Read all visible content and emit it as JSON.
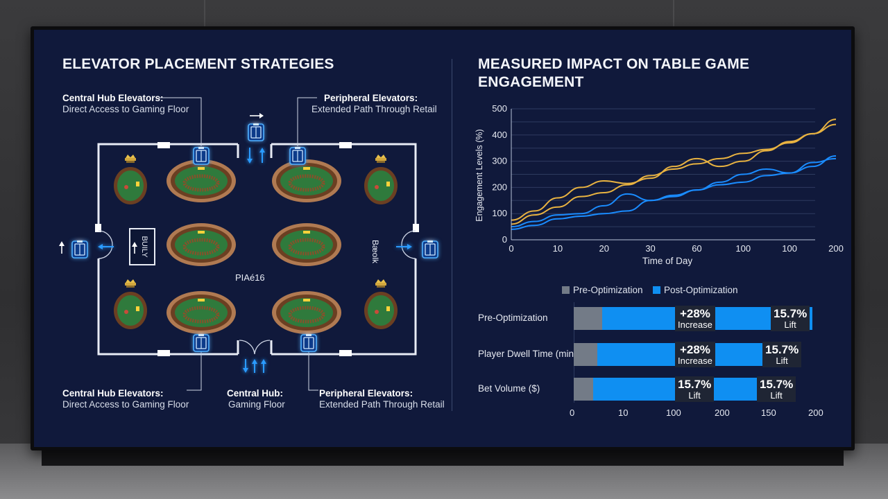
{
  "left_panel": {
    "title": "ELEVATOR PLACEMENT STRATEGIES",
    "callouts": {
      "top_left": {
        "title": "Central Hub Elevators:",
        "subtitle": "Direct Access to Gaming Floor"
      },
      "top_right": {
        "title": "Peripheral Elevators:",
        "subtitle": "Extended Path Through Retail"
      },
      "bottom_left": {
        "title": "Central Hub Elevators:",
        "subtitle": "Direct Access to Gaming Floor"
      },
      "bottom_center": {
        "title": "Central Hub:",
        "subtitle": "Gaming Floor"
      },
      "bottom_right": {
        "title": "Peripheral Elevators:",
        "subtitle": "Extended Path Through Retail"
      }
    },
    "floor_labels": {
      "left_sign": "BUILY",
      "center": "PIAé16",
      "right_sign": "Bæolk"
    },
    "icons": [
      "elevator-icon",
      "arrow-up-icon",
      "arrow-down-icon",
      "arrow-right-icon",
      "arrow-left-icon",
      "blackjack-table-icon",
      "round-table-icon"
    ],
    "accent_color": "#1a8cff"
  },
  "right_panel": {
    "title_line1": "MEASURED IMPACT ON TABLE GAME",
    "title_line2": "ENGAGEMENT"
  },
  "chart_data": [
    {
      "type": "line",
      "title": "",
      "xlabel": "Time of Day",
      "ylabel": "Engagement Levels (%)",
      "x_tick_labels": [
        "0",
        "10",
        "20",
        "30",
        "60",
        "100",
        "100",
        "200"
      ],
      "y_ticks": [
        0,
        50,
        100,
        150,
        200,
        250,
        300,
        350,
        400,
        450,
        500
      ],
      "y_tick_labels": [
        "0",
        "",
        "100",
        "",
        "200",
        "",
        "300",
        "",
        "400",
        "",
        "500"
      ],
      "ylim": [
        0,
        500
      ],
      "grid": true,
      "series": [
        {
          "color": "#e9b341",
          "values": [
            60,
            95,
            125,
            165,
            180,
            210,
            245,
            270,
            290,
            310,
            330,
            345,
            370,
            405,
            440
          ]
        },
        {
          "color": "#e9b341",
          "values": [
            75,
            110,
            160,
            200,
            225,
            215,
            235,
            280,
            310,
            280,
            300,
            340,
            375,
            405,
            460
          ]
        },
        {
          "color": "#1a8cff",
          "values": [
            40,
            55,
            80,
            90,
            100,
            110,
            150,
            170,
            190,
            210,
            220,
            245,
            255,
            280,
            320
          ]
        },
        {
          "color": "#1a8cff",
          "values": [
            50,
            70,
            95,
            100,
            130,
            175,
            150,
            165,
            190,
            220,
            250,
            270,
            255,
            295,
            310
          ]
        }
      ]
    },
    {
      "type": "bar",
      "orientation": "horizontal",
      "stacked": true,
      "legend": [
        "Pre-Optimization",
        "Post-Optimization"
      ],
      "legend_position": "top",
      "colors": {
        "pre": "#737b87",
        "post": "#0f8ff2"
      },
      "categories": [
        "Pre-Optimization",
        "Player Dwell Time (min)",
        "Bet Volume ($)"
      ],
      "x_tick_labels": [
        "0",
        "10",
        "100",
        "200",
        "150",
        "200"
      ],
      "series": [
        {
          "name": "Pre-Optimization",
          "values": [
            24,
            20,
            16
          ]
        },
        {
          "name": "Post-Optimization",
          "values": [
            176,
            156,
            154
          ]
        }
      ],
      "xlim": [
        0,
        200
      ],
      "annotations": [
        [
          {
            "value": "+28%",
            "label": "Increase"
          },
          {
            "value": "15.7%",
            "label": "Lift"
          }
        ],
        [
          {
            "value": "+28%",
            "label": "Increase"
          },
          {
            "value": "15.7%",
            "label": "Lift"
          }
        ],
        [
          {
            "value": "15.7%",
            "label": "Lift"
          },
          {
            "value": "15.7%",
            "label": "Lift"
          }
        ]
      ]
    }
  ]
}
